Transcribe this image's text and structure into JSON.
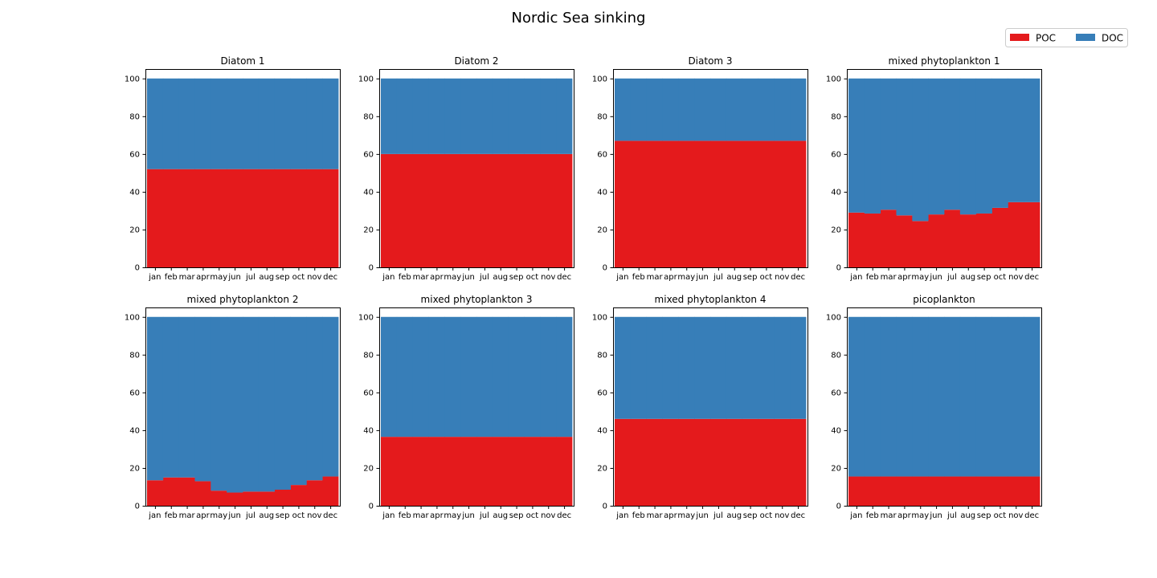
{
  "figure": {
    "suptitle": "Nordic Sea sinking",
    "legend": {
      "placement": "top-right",
      "entries": [
        {
          "label": "POC",
          "color": "#e41a1c"
        },
        {
          "label": "DOC",
          "color": "#377eb8"
        }
      ]
    }
  },
  "chart_data": [
    {
      "type": "bar",
      "stacked": true,
      "title": "Diatom 1",
      "categories": [
        "jan",
        "feb",
        "mar",
        "apr",
        "may",
        "jun",
        "jul",
        "aug",
        "sep",
        "oct",
        "nov",
        "dec"
      ],
      "series": [
        {
          "name": "POC",
          "color": "#e41a1c",
          "values": [
            52,
            52,
            52,
            52,
            52,
            52,
            52,
            52,
            52,
            52,
            52,
            52
          ]
        },
        {
          "name": "DOC",
          "color": "#377eb8",
          "values": [
            48,
            48,
            48,
            48,
            48,
            48,
            48,
            48,
            48,
            48,
            48,
            48
          ]
        }
      ],
      "ylim": [
        0,
        105
      ],
      "yticks": [
        0,
        20,
        40,
        60,
        80,
        100
      ],
      "grid": false
    },
    {
      "type": "bar",
      "stacked": true,
      "title": "Diatom 2",
      "categories": [
        "jan",
        "feb",
        "mar",
        "apr",
        "may",
        "jun",
        "jul",
        "aug",
        "sep",
        "oct",
        "nov",
        "dec"
      ],
      "series": [
        {
          "name": "POC",
          "color": "#e41a1c",
          "values": [
            60,
            60,
            60,
            60,
            60,
            60,
            60,
            60,
            60,
            60,
            60,
            60
          ]
        },
        {
          "name": "DOC",
          "color": "#377eb8",
          "values": [
            40,
            40,
            40,
            40,
            40,
            40,
            40,
            40,
            40,
            40,
            40,
            40
          ]
        }
      ],
      "ylim": [
        0,
        105
      ],
      "yticks": [
        0,
        20,
        40,
        60,
        80,
        100
      ],
      "grid": false
    },
    {
      "type": "bar",
      "stacked": true,
      "title": "Diatom 3",
      "categories": [
        "jan",
        "feb",
        "mar",
        "apr",
        "may",
        "jun",
        "jul",
        "aug",
        "sep",
        "oct",
        "nov",
        "dec"
      ],
      "series": [
        {
          "name": "POC",
          "color": "#e41a1c",
          "values": [
            67,
            67,
            67,
            67,
            67,
            67,
            67,
            67,
            67,
            67,
            67,
            67
          ]
        },
        {
          "name": "DOC",
          "color": "#377eb8",
          "values": [
            33,
            33,
            33,
            33,
            33,
            33,
            33,
            33,
            33,
            33,
            33,
            33
          ]
        }
      ],
      "ylim": [
        0,
        105
      ],
      "yticks": [
        0,
        20,
        40,
        60,
        80,
        100
      ],
      "grid": false
    },
    {
      "type": "bar",
      "stacked": true,
      "title": "mixed phytoplankton 1",
      "categories": [
        "jan",
        "feb",
        "mar",
        "apr",
        "may",
        "jun",
        "jul",
        "aug",
        "sep",
        "oct",
        "nov",
        "dec"
      ],
      "series": [
        {
          "name": "POC",
          "color": "#e41a1c",
          "values": [
            29,
            28.5,
            30.5,
            27.5,
            24.5,
            28,
            30.5,
            28,
            28.5,
            31.5,
            34.5,
            34.5
          ]
        },
        {
          "name": "DOC",
          "color": "#377eb8",
          "values": [
            71,
            71.5,
            69.5,
            72.5,
            75.5,
            72,
            69.5,
            72,
            71.5,
            68.5,
            65.5,
            65.5
          ]
        }
      ],
      "ylim": [
        0,
        105
      ],
      "yticks": [
        0,
        20,
        40,
        60,
        80,
        100
      ],
      "grid": false
    },
    {
      "type": "bar",
      "stacked": true,
      "title": "mixed phytoplankton 2",
      "categories": [
        "jan",
        "feb",
        "mar",
        "apr",
        "may",
        "jun",
        "jul",
        "aug",
        "sep",
        "oct",
        "nov",
        "dec"
      ],
      "series": [
        {
          "name": "POC",
          "color": "#e41a1c",
          "values": [
            13.5,
            15,
            15,
            13,
            8,
            7,
            7.5,
            7.5,
            8.5,
            11,
            13.5,
            15.5
          ]
        },
        {
          "name": "DOC",
          "color": "#377eb8",
          "values": [
            86.5,
            85,
            85,
            87,
            92,
            93,
            92.5,
            92.5,
            91.5,
            89,
            86.5,
            84.5
          ]
        }
      ],
      "ylim": [
        0,
        105
      ],
      "yticks": [
        0,
        20,
        40,
        60,
        80,
        100
      ],
      "grid": false
    },
    {
      "type": "bar",
      "stacked": true,
      "title": "mixed phytoplankton 3",
      "categories": [
        "jan",
        "feb",
        "mar",
        "apr",
        "may",
        "jun",
        "jul",
        "aug",
        "sep",
        "oct",
        "nov",
        "dec"
      ],
      "series": [
        {
          "name": "POC",
          "color": "#e41a1c",
          "values": [
            36.5,
            36.5,
            36.5,
            36.5,
            36.5,
            36.5,
            36.5,
            36.5,
            36.5,
            36.5,
            36.5,
            36.5
          ]
        },
        {
          "name": "DOC",
          "color": "#377eb8",
          "values": [
            63.5,
            63.5,
            63.5,
            63.5,
            63.5,
            63.5,
            63.5,
            63.5,
            63.5,
            63.5,
            63.5,
            63.5
          ]
        }
      ],
      "ylim": [
        0,
        105
      ],
      "yticks": [
        0,
        20,
        40,
        60,
        80,
        100
      ],
      "grid": false
    },
    {
      "type": "bar",
      "stacked": true,
      "title": "mixed phytoplankton 4",
      "categories": [
        "jan",
        "feb",
        "mar",
        "apr",
        "may",
        "jun",
        "jul",
        "aug",
        "sep",
        "oct",
        "nov",
        "dec"
      ],
      "series": [
        {
          "name": "POC",
          "color": "#e41a1c",
          "values": [
            46,
            46,
            46,
            46,
            46,
            46,
            46,
            46,
            46,
            46,
            46,
            46
          ]
        },
        {
          "name": "DOC",
          "color": "#377eb8",
          "values": [
            54,
            54,
            54,
            54,
            54,
            54,
            54,
            54,
            54,
            54,
            54,
            54
          ]
        }
      ],
      "ylim": [
        0,
        105
      ],
      "yticks": [
        0,
        20,
        40,
        60,
        80,
        100
      ],
      "grid": false
    },
    {
      "type": "bar",
      "stacked": true,
      "title": "picoplankton",
      "categories": [
        "jan",
        "feb",
        "mar",
        "apr",
        "may",
        "jun",
        "jul",
        "aug",
        "sep",
        "oct",
        "nov",
        "dec"
      ],
      "series": [
        {
          "name": "POC",
          "color": "#e41a1c",
          "values": [
            15.5,
            15.5,
            15.5,
            15.5,
            15.5,
            15.5,
            15.5,
            15.5,
            15.5,
            15.5,
            15.5,
            15.5
          ]
        },
        {
          "name": "DOC",
          "color": "#377eb8",
          "values": [
            84.5,
            84.5,
            84.5,
            84.5,
            84.5,
            84.5,
            84.5,
            84.5,
            84.5,
            84.5,
            84.5,
            84.5
          ]
        }
      ],
      "ylim": [
        0,
        105
      ],
      "yticks": [
        0,
        20,
        40,
        60,
        80,
        100
      ],
      "grid": false
    }
  ]
}
